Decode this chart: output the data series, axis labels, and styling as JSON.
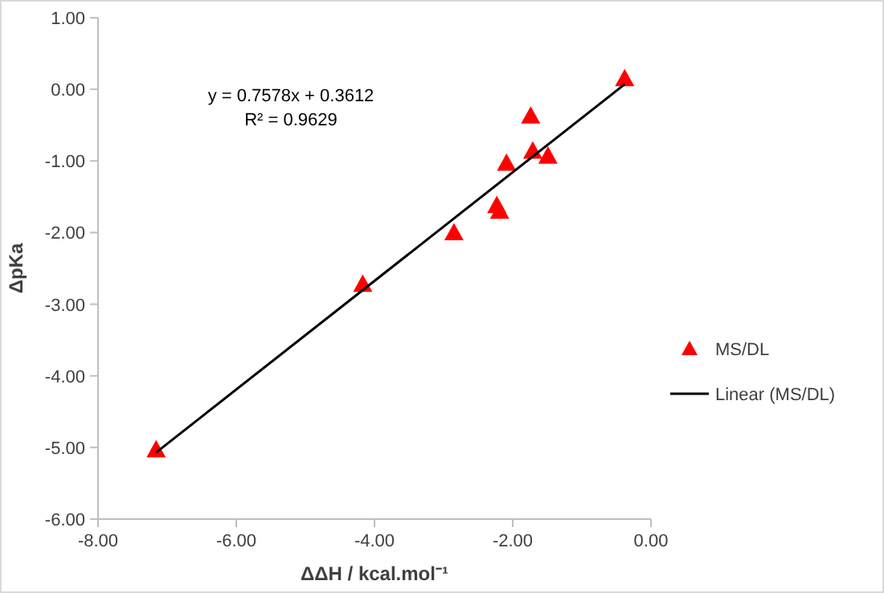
{
  "chart_data": {
    "type": "scatter",
    "xlabel": "ΔΔH / kcal.mol⁻¹",
    "ylabel": "ΔpKa",
    "annotations": [
      "y = 0.7578x + 0.3612",
      "R² = 0.9629"
    ],
    "xlim": [
      -8,
      0
    ],
    "xticks": [
      {
        "value": -8,
        "label": "-8.00"
      },
      {
        "value": -6,
        "label": "-6.00"
      },
      {
        "value": -4,
        "label": "-4.00"
      },
      {
        "value": -2,
        "label": "-2.00"
      },
      {
        "value": 0,
        "label": "0.00"
      }
    ],
    "ylim": [
      -6,
      1
    ],
    "yticks": [
      {
        "value": -6,
        "label": "-6.00"
      },
      {
        "value": -5,
        "label": "-5.00"
      },
      {
        "value": -4,
        "label": "-4.00"
      },
      {
        "value": -3,
        "label": "-3.00"
      },
      {
        "value": -2,
        "label": "-2.00"
      },
      {
        "value": -1,
        "label": "-1.00"
      },
      {
        "value": 0,
        "label": "0.00"
      },
      {
        "value": 1,
        "label": "1.00"
      }
    ],
    "grid": false,
    "legend": "right",
    "series": [
      {
        "name": "MS/DL",
        "marker": "triangle",
        "color": "#ff0000",
        "x": [
          -0.38,
          -1.74,
          -1.71,
          -1.49,
          -2.09,
          -2.23,
          -2.19,
          -2.85,
          -4.17,
          -7.16
        ],
        "values": [
          0.15,
          -0.37,
          -0.86,
          -0.93,
          -1.03,
          -1.62,
          -1.7,
          -2.0,
          -2.72,
          -5.03
        ]
      },
      {
        "name": "Linear (MS/DL)",
        "type": "line",
        "marker": "none",
        "line_style": "solid",
        "color": "#000000",
        "x": [
          -7.16,
          -0.38
        ],
        "values": [
          -5.07,
          0.07
        ]
      }
    ]
  }
}
